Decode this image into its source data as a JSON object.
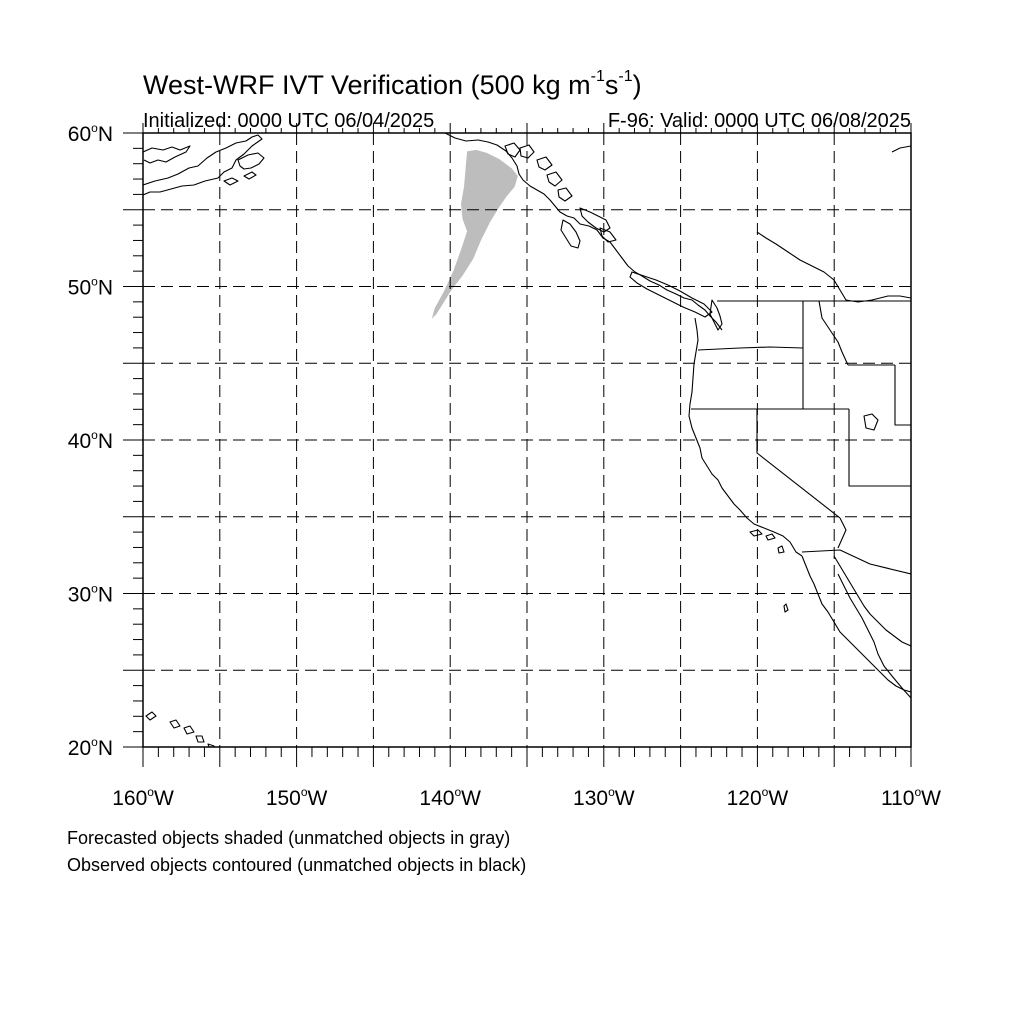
{
  "title": {
    "prefix": "West-WRF IVT Verification (500 kg m",
    "exp1": "-1",
    "mid": "s",
    "exp2": "-1",
    "suffix": ")"
  },
  "initialized": "Initialized: 0000 UTC 06/04/2025",
  "valid": "F-96: Valid: 0000 UTC 06/08/2025",
  "notes": [
    "Forecasted objects shaded (unmatched objects in gray)",
    "Observed objects contoured (unmatched objects in black)"
  ],
  "map": {
    "projection": "cylindrical-equidistant",
    "lon_range": [
      -160,
      -110
    ],
    "lat_range": [
      20,
      60
    ],
    "lon_labels": [
      {
        "lon": -160,
        "deg": "160",
        "hemi": "W"
      },
      {
        "lon": -150,
        "deg": "150",
        "hemi": "W"
      },
      {
        "lon": -140,
        "deg": "140",
        "hemi": "W"
      },
      {
        "lon": -130,
        "deg": "130",
        "hemi": "W"
      },
      {
        "lon": -120,
        "deg": "120",
        "hemi": "W"
      },
      {
        "lon": -110,
        "deg": "110",
        "hemi": "W"
      }
    ],
    "lat_labels": [
      {
        "lat": 60,
        "deg": "60",
        "hemi": "N"
      },
      {
        "lat": 50,
        "deg": "50",
        "hemi": "N"
      },
      {
        "lat": 40,
        "deg": "40",
        "hemi": "N"
      },
      {
        "lat": 30,
        "deg": "30",
        "hemi": "N"
      },
      {
        "lat": 20,
        "deg": "20",
        "hemi": "N"
      }
    ],
    "gridline_interval_deg": 5,
    "gridline_style": "dashed",
    "colors": {
      "forecast_unmatched": "#bdbdbd",
      "observed_unmatched": "#000000",
      "coastline": "#000000",
      "grid": "#000000"
    },
    "forecast_objects": [
      {
        "status": "unmatched",
        "outline_lonlat": [
          [
            -138.9,
            58.8
          ],
          [
            -138.3,
            58.9
          ],
          [
            -137.6,
            58.7
          ],
          [
            -136.8,
            58.3
          ],
          [
            -136.0,
            57.7
          ],
          [
            -135.6,
            57.2
          ],
          [
            -135.8,
            56.5
          ],
          [
            -136.3,
            55.9
          ],
          [
            -136.8,
            55.2
          ],
          [
            -137.4,
            54.2
          ],
          [
            -138.0,
            53.0
          ],
          [
            -138.5,
            51.8
          ],
          [
            -139.2,
            50.7
          ],
          [
            -139.9,
            49.8
          ],
          [
            -140.4,
            49.0
          ],
          [
            -140.9,
            48.2
          ],
          [
            -141.2,
            47.9
          ],
          [
            -141.0,
            48.6
          ],
          [
            -140.4,
            49.7
          ],
          [
            -139.8,
            51.0
          ],
          [
            -139.3,
            52.4
          ],
          [
            -138.9,
            53.6
          ],
          [
            -139.2,
            54.4
          ],
          [
            -139.3,
            55.4
          ],
          [
            -139.1,
            56.5
          ],
          [
            -139.0,
            57.7
          ]
        ]
      }
    ],
    "observed_objects": []
  }
}
